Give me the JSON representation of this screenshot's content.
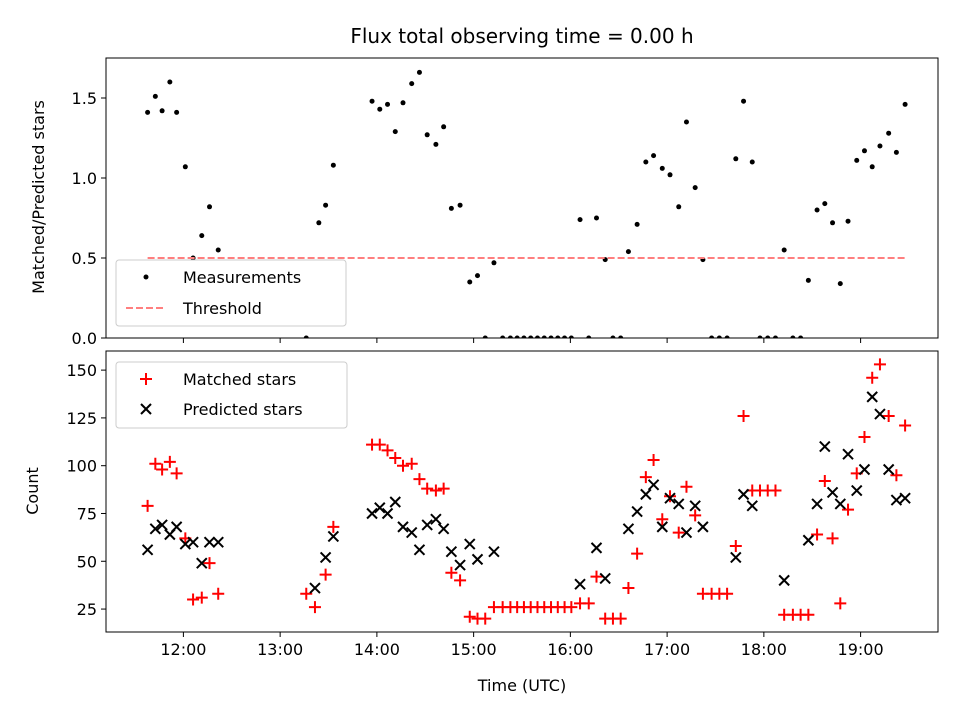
{
  "chart_data": [
    {
      "type": "scatter",
      "title": "Flux total observing time = 0.00 h",
      "ylabel": "Matched/Predicted stars",
      "xlabel": "",
      "x_unit": "hours UTC",
      "xlim": [
        11.2,
        19.8
      ],
      "ylim": [
        0,
        1.75
      ],
      "y_ticks": [
        "0.0",
        "0.5",
        "1.0",
        "1.5"
      ],
      "y_tick_values": [
        0,
        0.5,
        1.0,
        1.5
      ],
      "x_tick_values": [
        12,
        13,
        14,
        15,
        16,
        17,
        18,
        19
      ],
      "legend_position": "lower-left",
      "grid": false,
      "series": [
        {
          "name": "Measurements",
          "style": "dot",
          "color": "#000000",
          "points": [
            [
              11.63,
              1.41
            ],
            [
              11.71,
              1.51
            ],
            [
              11.78,
              1.42
            ],
            [
              11.86,
              1.6
            ],
            [
              11.93,
              1.41
            ],
            [
              12.02,
              1.07
            ],
            [
              12.1,
              0.5
            ],
            [
              12.19,
              0.64
            ],
            [
              12.27,
              0.82
            ],
            [
              12.36,
              0.55
            ],
            [
              13.27,
              0.0
            ],
            [
              13.4,
              0.72
            ],
            [
              13.47,
              0.83
            ],
            [
              13.55,
              1.08
            ],
            [
              13.95,
              1.48
            ],
            [
              14.03,
              1.43
            ],
            [
              14.11,
              1.46
            ],
            [
              14.19,
              1.29
            ],
            [
              14.27,
              1.47
            ],
            [
              14.36,
              1.59
            ],
            [
              14.44,
              1.66
            ],
            [
              14.52,
              1.27
            ],
            [
              14.61,
              1.21
            ],
            [
              14.69,
              1.32
            ],
            [
              14.77,
              0.81
            ],
            [
              14.86,
              0.83
            ],
            [
              14.96,
              0.35
            ],
            [
              15.04,
              0.39
            ],
            [
              15.12,
              0.0
            ],
            [
              15.21,
              0.47
            ],
            [
              15.3,
              0.0
            ],
            [
              15.38,
              0.0
            ],
            [
              15.45,
              0.0
            ],
            [
              15.52,
              0.0
            ],
            [
              15.59,
              0.0
            ],
            [
              15.66,
              0.0
            ],
            [
              15.73,
              0.0
            ],
            [
              15.8,
              0.0
            ],
            [
              15.87,
              0.0
            ],
            [
              15.94,
              0.0
            ],
            [
              16.01,
              0.0
            ],
            [
              16.1,
              0.74
            ],
            [
              16.19,
              0.0
            ],
            [
              16.27,
              0.75
            ],
            [
              16.36,
              0.49
            ],
            [
              16.44,
              0.0
            ],
            [
              16.52,
              0.0
            ],
            [
              16.6,
              0.54
            ],
            [
              16.69,
              0.71
            ],
            [
              16.78,
              1.1
            ],
            [
              16.86,
              1.14
            ],
            [
              16.95,
              1.06
            ],
            [
              17.03,
              1.02
            ],
            [
              17.12,
              0.82
            ],
            [
              17.2,
              1.35
            ],
            [
              17.29,
              0.94
            ],
            [
              17.37,
              0.49
            ],
            [
              17.46,
              0.0
            ],
            [
              17.54,
              0.0
            ],
            [
              17.62,
              0.0
            ],
            [
              17.71,
              1.12
            ],
            [
              17.79,
              1.48
            ],
            [
              17.88,
              1.1
            ],
            [
              17.96,
              0.0
            ],
            [
              18.04,
              0.0
            ],
            [
              18.12,
              0.0
            ],
            [
              18.21,
              0.55
            ],
            [
              18.3,
              0.0
            ],
            [
              18.38,
              0.0
            ],
            [
              18.46,
              0.36
            ],
            [
              18.55,
              0.8
            ],
            [
              18.63,
              0.84
            ],
            [
              18.71,
              0.72
            ],
            [
              18.79,
              0.34
            ],
            [
              18.87,
              0.73
            ],
            [
              18.96,
              1.11
            ],
            [
              19.04,
              1.17
            ],
            [
              19.12,
              1.07
            ],
            [
              19.2,
              1.2
            ],
            [
              19.29,
              1.28
            ],
            [
              19.37,
              1.16
            ],
            [
              19.46,
              1.46
            ]
          ]
        },
        {
          "name": "Threshold",
          "style": "dashed-line",
          "color": "#ff7f7f",
          "points": [
            [
              11.63,
              0.5
            ],
            [
              19.46,
              0.5
            ]
          ]
        }
      ]
    },
    {
      "type": "scatter",
      "title": "",
      "xlabel": "Time (UTC)",
      "ylabel": "Count",
      "x_unit": "hours UTC",
      "xlim": [
        11.2,
        19.8
      ],
      "ylim": [
        13,
        160
      ],
      "x_ticks": [
        "12:00",
        "13:00",
        "14:00",
        "15:00",
        "16:00",
        "17:00",
        "18:00",
        "19:00"
      ],
      "x_tick_values": [
        12,
        13,
        14,
        15,
        16,
        17,
        18,
        19
      ],
      "y_ticks": [
        "25",
        "50",
        "75",
        "100",
        "125",
        "150"
      ],
      "y_tick_values": [
        25,
        50,
        75,
        100,
        125,
        150
      ],
      "legend_position": "upper-left",
      "grid": false,
      "series": [
        {
          "name": "Matched stars",
          "marker": "plus",
          "color": "#ff0000",
          "points": [
            [
              11.63,
              79
            ],
            [
              11.71,
              101
            ],
            [
              11.78,
              98
            ],
            [
              11.86,
              102
            ],
            [
              11.93,
              96
            ],
            [
              12.02,
              62
            ],
            [
              12.1,
              30
            ],
            [
              12.19,
              31
            ],
            [
              12.27,
              49
            ],
            [
              12.36,
              33
            ],
            [
              13.27,
              33
            ],
            [
              13.36,
              26
            ],
            [
              13.47,
              43
            ],
            [
              13.55,
              68
            ],
            [
              13.95,
              111
            ],
            [
              14.03,
              111
            ],
            [
              14.11,
              108
            ],
            [
              14.19,
              104
            ],
            [
              14.27,
              100
            ],
            [
              14.36,
              101
            ],
            [
              14.44,
              93
            ],
            [
              14.52,
              88
            ],
            [
              14.61,
              87
            ],
            [
              14.69,
              88
            ],
            [
              14.77,
              44
            ],
            [
              14.86,
              40
            ],
            [
              14.96,
              21
            ],
            [
              15.04,
              20
            ],
            [
              15.12,
              20
            ],
            [
              15.21,
              26
            ],
            [
              15.3,
              26
            ],
            [
              15.38,
              26
            ],
            [
              15.45,
              26
            ],
            [
              15.52,
              26
            ],
            [
              15.59,
              26
            ],
            [
              15.66,
              26
            ],
            [
              15.73,
              26
            ],
            [
              15.8,
              26
            ],
            [
              15.87,
              26
            ],
            [
              15.94,
              26
            ],
            [
              16.01,
              26
            ],
            [
              16.1,
              28
            ],
            [
              16.19,
              28
            ],
            [
              16.27,
              42
            ],
            [
              16.36,
              20
            ],
            [
              16.44,
              20
            ],
            [
              16.52,
              20
            ],
            [
              16.6,
              36
            ],
            [
              16.69,
              54
            ],
            [
              16.78,
              94
            ],
            [
              16.86,
              103
            ],
            [
              16.95,
              72
            ],
            [
              17.03,
              84
            ],
            [
              17.12,
              65
            ],
            [
              17.2,
              89
            ],
            [
              17.29,
              74
            ],
            [
              17.37,
              33
            ],
            [
              17.46,
              33
            ],
            [
              17.54,
              33
            ],
            [
              17.62,
              33
            ],
            [
              17.71,
              58
            ],
            [
              17.79,
              126
            ],
            [
              17.88,
              87
            ],
            [
              17.96,
              87
            ],
            [
              18.04,
              87
            ],
            [
              18.12,
              87
            ],
            [
              18.21,
              22
            ],
            [
              18.3,
              22
            ],
            [
              18.38,
              22
            ],
            [
              18.46,
              22
            ],
            [
              18.55,
              64
            ],
            [
              18.63,
              92
            ],
            [
              18.71,
              62
            ],
            [
              18.79,
              28
            ],
            [
              18.87,
              77
            ],
            [
              18.96,
              96
            ],
            [
              19.04,
              115
            ],
            [
              19.12,
              146
            ],
            [
              19.2,
              153
            ],
            [
              19.29,
              126
            ],
            [
              19.37,
              95
            ],
            [
              19.46,
              121
            ]
          ]
        },
        {
          "name": "Predicted stars",
          "marker": "x",
          "color": "#000000",
          "points": [
            [
              11.63,
              56
            ],
            [
              11.71,
              67
            ],
            [
              11.78,
              69
            ],
            [
              11.86,
              64
            ],
            [
              11.93,
              68
            ],
            [
              12.02,
              59
            ],
            [
              12.1,
              60
            ],
            [
              12.19,
              49
            ],
            [
              12.27,
              60
            ],
            [
              12.36,
              60
            ],
            [
              13.36,
              36
            ],
            [
              13.47,
              52
            ],
            [
              13.55,
              63
            ],
            [
              13.95,
              75
            ],
            [
              14.03,
              78
            ],
            [
              14.11,
              75
            ],
            [
              14.19,
              81
            ],
            [
              14.27,
              68
            ],
            [
              14.36,
              65
            ],
            [
              14.44,
              56
            ],
            [
              14.52,
              69
            ],
            [
              14.61,
              72
            ],
            [
              14.69,
              67
            ],
            [
              14.77,
              55
            ],
            [
              14.86,
              48
            ],
            [
              14.96,
              59
            ],
            [
              15.04,
              51
            ],
            [
              15.21,
              55
            ],
            [
              16.1,
              38
            ],
            [
              16.27,
              57
            ],
            [
              16.36,
              41
            ],
            [
              16.6,
              67
            ],
            [
              16.69,
              76
            ],
            [
              16.78,
              85
            ],
            [
              16.86,
              90
            ],
            [
              16.95,
              68
            ],
            [
              17.03,
              83
            ],
            [
              17.12,
              80
            ],
            [
              17.2,
              65
            ],
            [
              17.29,
              79
            ],
            [
              17.37,
              68
            ],
            [
              17.71,
              52
            ],
            [
              17.79,
              85
            ],
            [
              17.88,
              79
            ],
            [
              18.21,
              40
            ],
            [
              18.46,
              61
            ],
            [
              18.55,
              80
            ],
            [
              18.63,
              110
            ],
            [
              18.71,
              86
            ],
            [
              18.79,
              80
            ],
            [
              18.87,
              106
            ],
            [
              18.96,
              87
            ],
            [
              19.04,
              98
            ],
            [
              19.12,
              136
            ],
            [
              19.2,
              127
            ],
            [
              19.29,
              98
            ],
            [
              19.37,
              82
            ],
            [
              19.46,
              83
            ]
          ]
        }
      ]
    }
  ]
}
